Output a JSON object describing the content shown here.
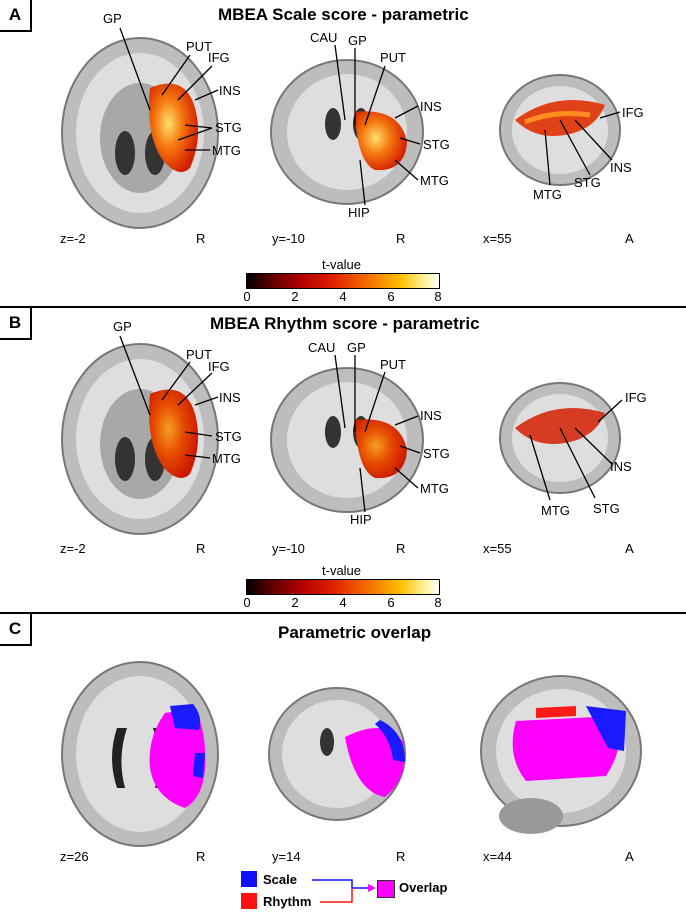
{
  "panels": [
    {
      "letter": "A",
      "title": "MBEA Scale score - parametric",
      "axial_labels": [
        "GP",
        "PUT",
        "IFG",
        "INS",
        "STG",
        "MTG"
      ],
      "coronal_labels": [
        "CAU",
        "GP",
        "PUT",
        "INS",
        "STG",
        "MTG",
        "HIP"
      ],
      "sagittal_labels": [
        "IFG",
        "INS",
        "STG",
        "MTG"
      ],
      "coords": [
        {
          "slice": "z=-2",
          "orient": "R"
        },
        {
          "slice": "y=-10",
          "orient": "R"
        },
        {
          "slice": "x=55",
          "orient": "A"
        }
      ]
    },
    {
      "letter": "B",
      "title": "MBEA Rhythm score - parametric",
      "axial_labels": [
        "GP",
        "PUT",
        "IFG",
        "INS",
        "STG",
        "MTG"
      ],
      "coronal_labels": [
        "CAU",
        "GP",
        "PUT",
        "INS",
        "STG",
        "MTG",
        "HIP"
      ],
      "sagittal_labels": [
        "IFG",
        "INS",
        "STG",
        "MTG"
      ],
      "coords": [
        {
          "slice": "z=-2",
          "orient": "R"
        },
        {
          "slice": "y=-10",
          "orient": "R"
        },
        {
          "slice": "x=55",
          "orient": "A"
        }
      ]
    },
    {
      "letter": "C",
      "title": "Parametric overlap",
      "coords": [
        {
          "slice": "z=26",
          "orient": "R"
        },
        {
          "slice": "y=14",
          "orient": "R"
        },
        {
          "slice": "x=44",
          "orient": "A"
        }
      ]
    }
  ],
  "colorbar": {
    "title": "t-value",
    "ticks": [
      "0",
      "2",
      "4",
      "6",
      "8"
    ]
  },
  "legend": {
    "scale": "Scale",
    "rhythm": "Rhythm",
    "overlap": "Overlap",
    "colors": {
      "scale": "#1010ff",
      "rhythm": "#ff1010",
      "overlap": "#ff00ff"
    }
  }
}
